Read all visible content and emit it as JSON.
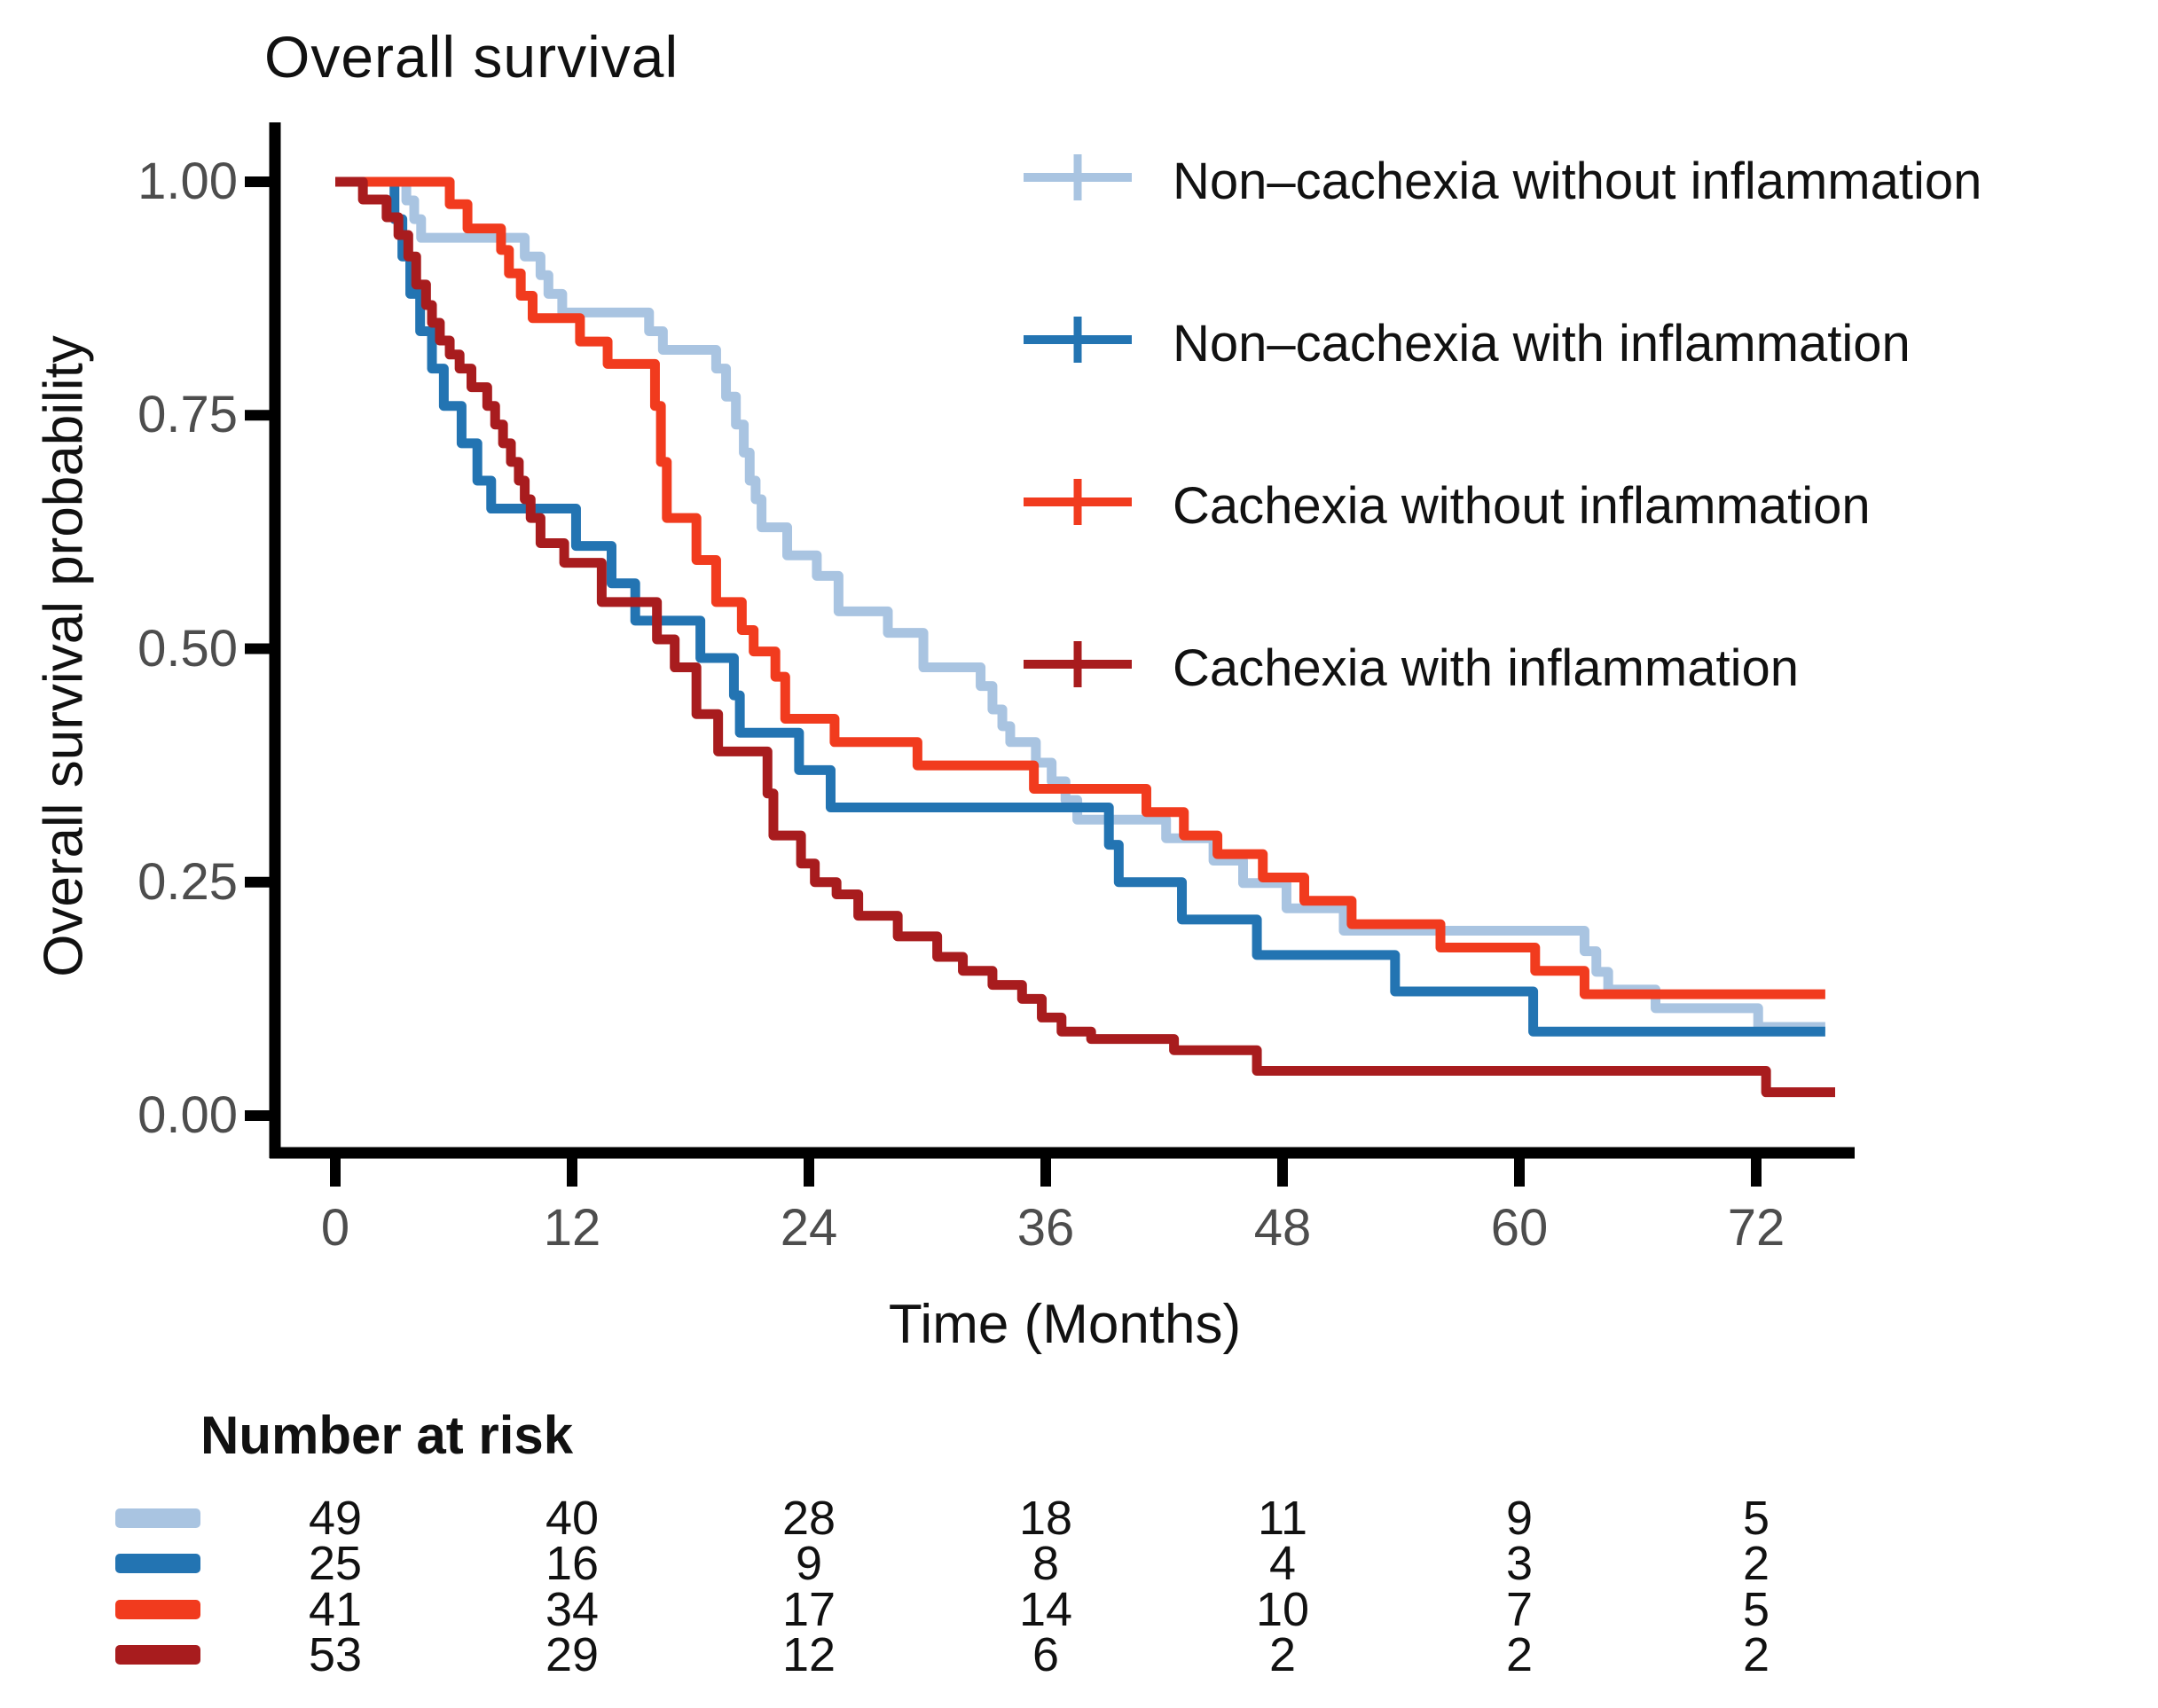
{
  "title": "Overall survival",
  "y_axis": {
    "label": "Overall survival probability",
    "ticks": [
      {
        "label": "1.00",
        "value": 1.0
      },
      {
        "label": "0.75",
        "value": 0.75
      },
      {
        "label": "0.50",
        "value": 0.5
      },
      {
        "label": "0.25",
        "value": 0.25
      },
      {
        "label": "0.00",
        "value": 0.0
      }
    ]
  },
  "x_axis": {
    "label": "Time (Months)",
    "ticks": [
      {
        "label": "0",
        "value": 0
      },
      {
        "label": "12",
        "value": 12
      },
      {
        "label": "24",
        "value": 24
      },
      {
        "label": "36",
        "value": 36
      },
      {
        "label": "48",
        "value": 48
      },
      {
        "label": "60",
        "value": 60
      },
      {
        "label": "72",
        "value": 72
      }
    ]
  },
  "legend": {
    "items": [
      {
        "label": "Non–cachexia without inflammation",
        "color": "#a9c4e1"
      },
      {
        "label": "Non–cachexia with inflammation",
        "color": "#2374b2"
      },
      {
        "label": "Cachexia without inflammation",
        "color": "#f13b1e"
      },
      {
        "label": "Cachexia with inflammation",
        "color": "#a81c1e"
      }
    ]
  },
  "risk_table": {
    "title": "Number at risk",
    "times": [
      0,
      12,
      24,
      36,
      48,
      60,
      72
    ],
    "rows": [
      {
        "group": "Non–cachexia without inflammation",
        "color": "#a9c4e1",
        "counts": [
          49,
          40,
          28,
          18,
          11,
          9,
          5
        ]
      },
      {
        "group": "Non–cachexia with inflammation",
        "color": "#2374b2",
        "counts": [
          25,
          16,
          9,
          8,
          4,
          3,
          2
        ]
      },
      {
        "group": "Cachexia without inflammation",
        "color": "#f13b1e",
        "counts": [
          41,
          34,
          17,
          14,
          10,
          7,
          5
        ]
      },
      {
        "group": "Cachexia with inflammation",
        "color": "#a81c1e",
        "counts": [
          53,
          29,
          12,
          6,
          2,
          2,
          2
        ]
      }
    ]
  },
  "chart_data": {
    "type": "line",
    "subtype": "kaplan-meier-step",
    "title": "Overall survival",
    "xlabel": "Time (Months)",
    "ylabel": "Overall survival probability",
    "xlim": [
      0,
      77
    ],
    "ylim": [
      0,
      1
    ],
    "grid": false,
    "legend_position": "top-right",
    "series": [
      {
        "name": "Non–cachexia without inflammation",
        "color": "#a9c4e1",
        "end_time": 75.5,
        "points": [
          [
            0,
            1.0
          ],
          [
            3.6,
            0.98
          ],
          [
            4.0,
            0.96
          ],
          [
            4.35,
            0.94
          ],
          [
            9.6,
            0.92
          ],
          [
            10.4,
            0.9
          ],
          [
            10.8,
            0.88
          ],
          [
            11.5,
            0.86
          ],
          [
            15.9,
            0.84
          ],
          [
            16.6,
            0.82
          ],
          [
            19.3,
            0.8
          ],
          [
            19.8,
            0.77
          ],
          [
            20.3,
            0.74
          ],
          [
            20.7,
            0.71
          ],
          [
            21.0,
            0.68
          ],
          [
            21.3,
            0.66
          ],
          [
            21.6,
            0.63
          ],
          [
            22.9,
            0.6
          ],
          [
            24.4,
            0.578
          ],
          [
            25.5,
            0.54
          ],
          [
            28.0,
            0.517
          ],
          [
            29.8,
            0.48
          ],
          [
            32.7,
            0.46
          ],
          [
            33.3,
            0.435
          ],
          [
            33.8,
            0.417
          ],
          [
            34.2,
            0.4
          ],
          [
            35.5,
            0.378
          ],
          [
            36.3,
            0.358
          ],
          [
            37.0,
            0.338
          ],
          [
            37.6,
            0.317
          ],
          [
            42.1,
            0.297
          ],
          [
            44.5,
            0.273
          ],
          [
            46.0,
            0.249
          ],
          [
            48.2,
            0.222
          ],
          [
            51.1,
            0.198
          ],
          [
            63.3,
            0.176
          ],
          [
            63.9,
            0.154
          ],
          [
            64.5,
            0.135
          ],
          [
            66.9,
            0.115
          ],
          [
            72.1,
            0.095
          ]
        ]
      },
      {
        "name": "Non–cachexia with inflammation",
        "color": "#2374b2",
        "end_time": 75.5,
        "points": [
          [
            0,
            1.0
          ],
          [
            3.0,
            0.96
          ],
          [
            3.4,
            0.92
          ],
          [
            3.8,
            0.88
          ],
          [
            4.3,
            0.84
          ],
          [
            4.9,
            0.8
          ],
          [
            5.5,
            0.76
          ],
          [
            6.4,
            0.72
          ],
          [
            7.2,
            0.68
          ],
          [
            7.9,
            0.65
          ],
          [
            12.2,
            0.61
          ],
          [
            14.0,
            0.57
          ],
          [
            15.2,
            0.53
          ],
          [
            18.5,
            0.49
          ],
          [
            20.2,
            0.45
          ],
          [
            20.5,
            0.41
          ],
          [
            23.5,
            0.37
          ],
          [
            25.1,
            0.33
          ],
          [
            39.2,
            0.29
          ],
          [
            39.7,
            0.25
          ],
          [
            42.9,
            0.21
          ],
          [
            46.7,
            0.172
          ],
          [
            53.7,
            0.133
          ],
          [
            60.7,
            0.09
          ]
        ]
      },
      {
        "name": "Cachexia without inflammation",
        "color": "#f13b1e",
        "end_time": 75.5,
        "points": [
          [
            0,
            1.0
          ],
          [
            5.8,
            0.976
          ],
          [
            6.7,
            0.95
          ],
          [
            8.4,
            0.927
          ],
          [
            8.8,
            0.902
          ],
          [
            9.4,
            0.878
          ],
          [
            10.0,
            0.854
          ],
          [
            12.4,
            0.829
          ],
          [
            13.8,
            0.805
          ],
          [
            16.2,
            0.76
          ],
          [
            16.5,
            0.7
          ],
          [
            16.8,
            0.64
          ],
          [
            18.3,
            0.595
          ],
          [
            19.3,
            0.55
          ],
          [
            20.6,
            0.52
          ],
          [
            21.2,
            0.497
          ],
          [
            22.3,
            0.47
          ],
          [
            22.8,
            0.425
          ],
          [
            25.3,
            0.4
          ],
          [
            29.5,
            0.375
          ],
          [
            35.4,
            0.35
          ],
          [
            41.1,
            0.325
          ],
          [
            43.0,
            0.3
          ],
          [
            44.7,
            0.28
          ],
          [
            47.0,
            0.255
          ],
          [
            49.1,
            0.23
          ],
          [
            51.5,
            0.205
          ],
          [
            56.0,
            0.18
          ],
          [
            60.8,
            0.155
          ],
          [
            63.3,
            0.13
          ]
        ]
      },
      {
        "name": "Cachexia with inflammation",
        "color": "#a81c1e",
        "end_time": 76.0,
        "points": [
          [
            0,
            1.0
          ],
          [
            1.4,
            0.981
          ],
          [
            2.6,
            0.962
          ],
          [
            3.2,
            0.943
          ],
          [
            3.7,
            0.92
          ],
          [
            4.1,
            0.89
          ],
          [
            4.6,
            0.868
          ],
          [
            4.9,
            0.849
          ],
          [
            5.3,
            0.83
          ],
          [
            5.8,
            0.815
          ],
          [
            6.3,
            0.8
          ],
          [
            6.9,
            0.78
          ],
          [
            7.7,
            0.76
          ],
          [
            8.1,
            0.74
          ],
          [
            8.5,
            0.72
          ],
          [
            8.9,
            0.7
          ],
          [
            9.3,
            0.68
          ],
          [
            9.6,
            0.66
          ],
          [
            9.9,
            0.64
          ],
          [
            10.4,
            0.613
          ],
          [
            11.6,
            0.592
          ],
          [
            13.5,
            0.55
          ],
          [
            16.3,
            0.51
          ],
          [
            17.2,
            0.48
          ],
          [
            18.3,
            0.43
          ],
          [
            19.4,
            0.39
          ],
          [
            21.9,
            0.345
          ],
          [
            22.2,
            0.3
          ],
          [
            23.6,
            0.27
          ],
          [
            24.3,
            0.25
          ],
          [
            25.4,
            0.237
          ],
          [
            26.5,
            0.214
          ],
          [
            28.5,
            0.192
          ],
          [
            30.5,
            0.17
          ],
          [
            31.8,
            0.155
          ],
          [
            33.3,
            0.14
          ],
          [
            34.8,
            0.125
          ],
          [
            35.8,
            0.105
          ],
          [
            36.8,
            0.09
          ],
          [
            38.3,
            0.082
          ],
          [
            42.5,
            0.07
          ],
          [
            46.7,
            0.048
          ],
          [
            72.5,
            0.025
          ]
        ]
      }
    ]
  }
}
